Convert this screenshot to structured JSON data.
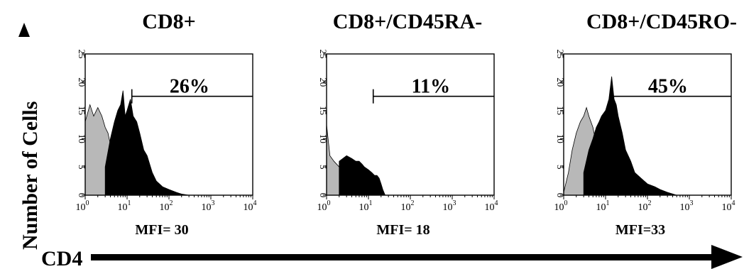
{
  "figure": {
    "y_axis_title": "Number of Cells",
    "x_axis_title": "CD4",
    "colors": {
      "stroke": "#000000",
      "filled_histogram": "#000000",
      "shaded_histogram": "#b8b8b8"
    },
    "x_tick_base": "10",
    "x_tick_exponents": [
      "0",
      "1",
      "2",
      "3",
      "4"
    ],
    "y_tick_labels": [
      "0",
      "5",
      "10",
      "15",
      "20",
      "25"
    ]
  },
  "chart_data": [
    {
      "type": "area",
      "title": "CD8+",
      "gate_label": "26%",
      "mfi_label": "MFI= 30",
      "x_scale": "log",
      "xlim": [
        1,
        10000
      ],
      "ylim": [
        0,
        25
      ],
      "gate": {
        "x_start": 13,
        "x_end": 10000,
        "y": 17.5
      },
      "series": [
        {
          "fill": "shaded",
          "points": [
            [
              1,
              13
            ],
            [
              1.3,
              16
            ],
            [
              1.6,
              14
            ],
            [
              2,
              15.5
            ],
            [
              2.5,
              14
            ],
            [
              3,
              12
            ],
            [
              3.5,
              11
            ],
            [
              4,
              9
            ],
            [
              5,
              6
            ],
            [
              6,
              4
            ],
            [
              7,
              2.5
            ],
            [
              8,
              1
            ],
            [
              10,
              0.3
            ],
            [
              12,
              0
            ]
          ]
        },
        {
          "fill": "solid",
          "points": [
            [
              3,
              5
            ],
            [
              4,
              10
            ],
            [
              5,
              13
            ],
            [
              6,
              15
            ],
            [
              7,
              16
            ],
            [
              8,
              18.5
            ],
            [
              9,
              14
            ],
            [
              10,
              15
            ],
            [
              12,
              17
            ],
            [
              14,
              14
            ],
            [
              17,
              13
            ],
            [
              20,
              11
            ],
            [
              25,
              8
            ],
            [
              30,
              7
            ],
            [
              40,
              4
            ],
            [
              50,
              2.5
            ],
            [
              70,
              1.5
            ],
            [
              100,
              1
            ],
            [
              150,
              0.5
            ],
            [
              200,
              0.2
            ],
            [
              300,
              0
            ]
          ]
        }
      ]
    },
    {
      "type": "area",
      "title": "CD8+/CD45RA-",
      "gate_label": "11%",
      "mfi_label": "MFI= 18",
      "x_scale": "log",
      "xlim": [
        1,
        10000
      ],
      "ylim": [
        0,
        25
      ],
      "gate": {
        "x_start": 13,
        "x_end": 10000,
        "y": 17.5
      },
      "series": [
        {
          "fill": "shaded",
          "points": [
            [
              1,
              12.5
            ],
            [
              1.2,
              7
            ],
            [
              1.5,
              6
            ],
            [
              2,
              5
            ],
            [
              3,
              4
            ],
            [
              4,
              3
            ],
            [
              5,
              2
            ],
            [
              6,
              1.5
            ],
            [
              8,
              1
            ],
            [
              10,
              0.5
            ],
            [
              12,
              0
            ]
          ]
        },
        {
          "fill": "solid",
          "points": [
            [
              2,
              6
            ],
            [
              3,
              7
            ],
            [
              4,
              6.5
            ],
            [
              5,
              6
            ],
            [
              6,
              6
            ],
            [
              7,
              5.5
            ],
            [
              8,
              5
            ],
            [
              10,
              4.5
            ],
            [
              12,
              4
            ],
            [
              14,
              3.5
            ],
            [
              16,
              3.5
            ],
            [
              18,
              3
            ],
            [
              20,
              2
            ],
            [
              22,
              1
            ],
            [
              25,
              0
            ]
          ]
        }
      ]
    },
    {
      "type": "area",
      "title": "CD8+/CD45RO-",
      "gate_label": "45%",
      "mfi_label": "MFI=33",
      "x_scale": "log",
      "xlim": [
        1,
        10000
      ],
      "ylim": [
        0,
        25
      ],
      "gate": {
        "x_start": 13,
        "x_end": 10000,
        "y": 17.5
      },
      "series": [
        {
          "fill": "shaded",
          "points": [
            [
              1,
              0.5
            ],
            [
              1.3,
              4
            ],
            [
              1.6,
              8
            ],
            [
              2,
              11
            ],
            [
              2.5,
              13
            ],
            [
              3,
              14
            ],
            [
              3.5,
              15.5
            ],
            [
              4,
              14
            ],
            [
              5,
              12
            ],
            [
              6,
              9
            ],
            [
              7,
              6
            ],
            [
              8,
              4
            ],
            [
              10,
              2
            ],
            [
              12,
              1
            ],
            [
              15,
              0
            ]
          ]
        },
        {
          "fill": "solid",
          "points": [
            [
              3,
              4
            ],
            [
              4,
              8
            ],
            [
              5,
              10
            ],
            [
              6,
              12
            ],
            [
              7,
              13
            ],
            [
              8,
              14
            ],
            [
              10,
              15
            ],
            [
              12,
              17
            ],
            [
              14,
              21
            ],
            [
              16,
              17
            ],
            [
              18,
              16
            ],
            [
              20,
              14
            ],
            [
              25,
              11
            ],
            [
              30,
              8
            ],
            [
              40,
              6
            ],
            [
              50,
              4
            ],
            [
              70,
              3
            ],
            [
              100,
              2
            ],
            [
              150,
              1.5
            ],
            [
              200,
              1
            ],
            [
              300,
              0.5
            ],
            [
              500,
              0
            ]
          ]
        }
      ]
    }
  ]
}
